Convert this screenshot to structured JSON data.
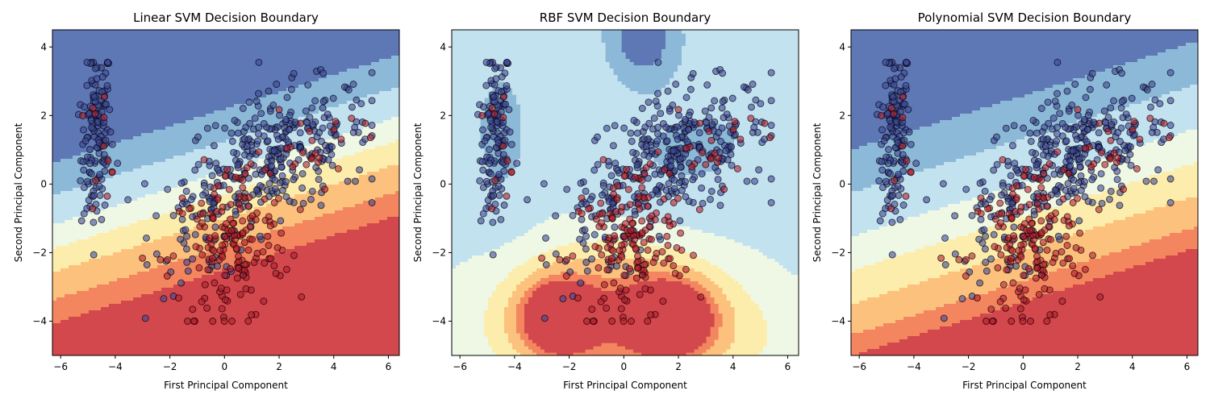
{
  "chart_data": [
    {
      "type": "scatter",
      "title": "Linear SVM Decision Boundary",
      "xlabel": "First Principal Component",
      "ylabel": "Second Principal Component",
      "xlim": [
        -6.3,
        6.4
      ],
      "ylim": [
        -5.0,
        4.5
      ],
      "xticks": [
        -6,
        -4,
        -2,
        0,
        2,
        4,
        6
      ],
      "yticks": [
        -4,
        -2,
        0,
        2,
        4
      ],
      "background": "decision-function filled contours",
      "colors": [
        "#5e77b5",
        "#8db9d9",
        "#c3e2ef",
        "#eef8e5",
        "#fdedac",
        "#fcc27d",
        "#f3855f",
        "#d2484c"
      ]
    },
    {
      "type": "scatter",
      "title": "RBF SVM Decision Boundary",
      "xlabel": "First Principal Component",
      "ylabel": "Second Principal Component",
      "xlim": [
        -6.3,
        6.4
      ],
      "ylim": [
        -5.0,
        4.5
      ],
      "xticks": [
        -6,
        -4,
        -2,
        0,
        2,
        4,
        6
      ],
      "yticks": [
        -4,
        -2,
        0,
        2,
        4
      ],
      "background": "decision-function filled contours",
      "colors": [
        "#5e77b5",
        "#8db9d9",
        "#c3e2ef",
        "#eef8e5",
        "#fdedac",
        "#fcc27d",
        "#f3855f",
        "#d2484c"
      ]
    },
    {
      "type": "scatter",
      "title": "Polynomial SVM Decision Boundary",
      "xlabel": "First Principal Component",
      "ylabel": "Second Principal Component",
      "xlim": [
        -6.3,
        6.4
      ],
      "ylim": [
        -5.0,
        4.5
      ],
      "xticks": [
        -6,
        -4,
        -2,
        0,
        2,
        4,
        6
      ],
      "yticks": [
        -4,
        -2,
        0,
        2,
        4
      ],
      "background": "decision-function filled contours",
      "colors": [
        "#5e77b5",
        "#8db9d9",
        "#c3e2ef",
        "#eef8e5",
        "#fdedac",
        "#fcc27d",
        "#f3855f",
        "#d2484c"
      ]
    }
  ],
  "points": {
    "blue_color": "#3d4a9a",
    "red_color": "#b81d2b",
    "clusters": [
      {
        "class": "blue",
        "n": 140,
        "cx": -4.7,
        "cy": 1.3,
        "sx": 0.28,
        "sy": 1.25,
        "slope": 1.9
      },
      {
        "class": "blue",
        "n": 300,
        "cx": 2.0,
        "cy": 0.9,
        "sx": 1.7,
        "sy": 0.9,
        "slope": 0.45
      },
      {
        "class": "blue",
        "n": 70,
        "cx": -0.4,
        "cy": -1.0,
        "sx": 1.1,
        "sy": 1.0,
        "slope": 0.3
      },
      {
        "class": "red",
        "n": 180,
        "cx": 0.2,
        "cy": -1.8,
        "sx": 1.1,
        "sy": 1.2,
        "slope": 0.4
      },
      {
        "class": "red",
        "n": 25,
        "cx": 3.2,
        "cy": 1.3,
        "sx": 0.9,
        "sy": 0.6,
        "slope": 0.0
      },
      {
        "class": "red",
        "n": 12,
        "cx": -4.4,
        "cy": 1.5,
        "sx": 0.3,
        "sy": 1.0,
        "slope": 1.5
      }
    ]
  }
}
